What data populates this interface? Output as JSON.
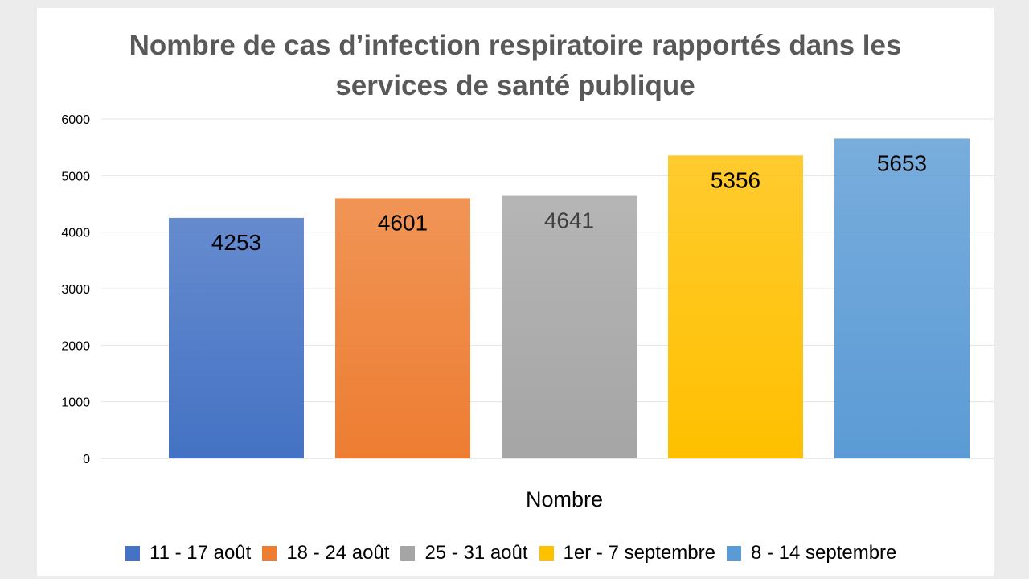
{
  "chart_data": {
    "type": "bar",
    "title": "Nombre de cas d’infection respiratoire rapportés dans les services de santé publique",
    "title_lines": [
      "Nombre de cas d’infection respiratoire rapportés dans les",
      "services de santé publique"
    ],
    "xlabel": "Nombre",
    "ylabel": "",
    "ylim": [
      0,
      6000
    ],
    "yticks": [
      "0",
      "1000",
      "2000",
      "3000",
      "4000",
      "5000",
      "6000"
    ],
    "grid": true,
    "legend_position": "bottom",
    "categories": [
      "Nombre"
    ],
    "series": [
      {
        "name": "11 - 17 août",
        "values": [
          4253
        ],
        "color": "#4472c4",
        "label_color": "#000000"
      },
      {
        "name": "18 - 24 août",
        "values": [
          4601
        ],
        "color": "#ed7d31",
        "label_color": "#000000"
      },
      {
        "name": "25 - 31 août",
        "values": [
          4641
        ],
        "color": "#a5a5a5",
        "label_color": "#404040"
      },
      {
        "name": "1er - 7 septembre",
        "values": [
          5356
        ],
        "color": "#ffc000",
        "label_color": "#000000"
      },
      {
        "name": "8 - 14 septembre",
        "values": [
          5653
        ],
        "color": "#5b9bd5",
        "label_color": "#000000"
      }
    ]
  }
}
